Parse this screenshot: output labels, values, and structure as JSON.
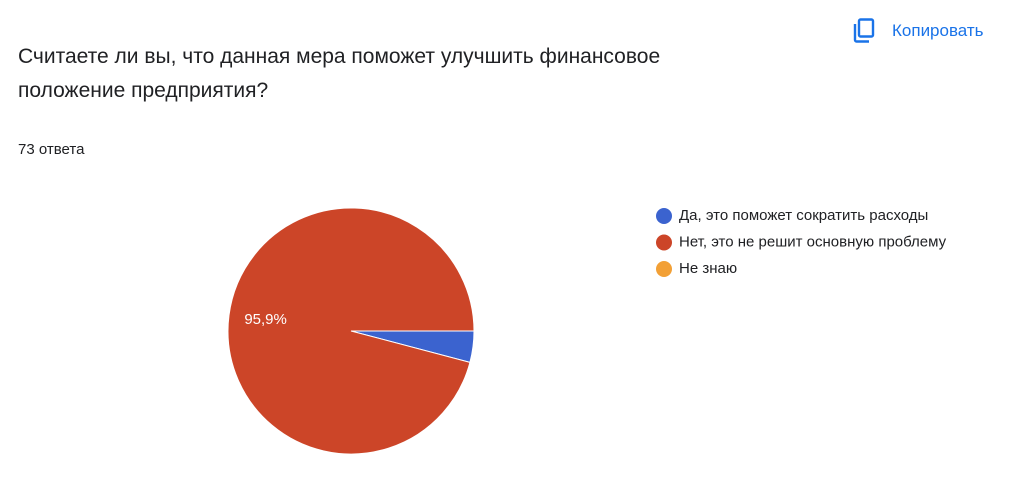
{
  "header": {
    "copy_button": "Копировать"
  },
  "chart_data": {
    "type": "pie",
    "title": "Считаете ли вы, что данная мера поможет улучшить финансовое положение предприятия?",
    "subtitle": "73 ответа",
    "categories": [
      "Да, это поможет сократить расходы",
      "Нет, это не решит основную проблему",
      "Не знаю"
    ],
    "values": [
      4.1,
      95.9,
      0
    ],
    "value_labels": [
      null,
      "95,9%",
      null
    ],
    "colors": [
      "#3b63cf",
      "#cc4528",
      "#f2a036"
    ]
  }
}
